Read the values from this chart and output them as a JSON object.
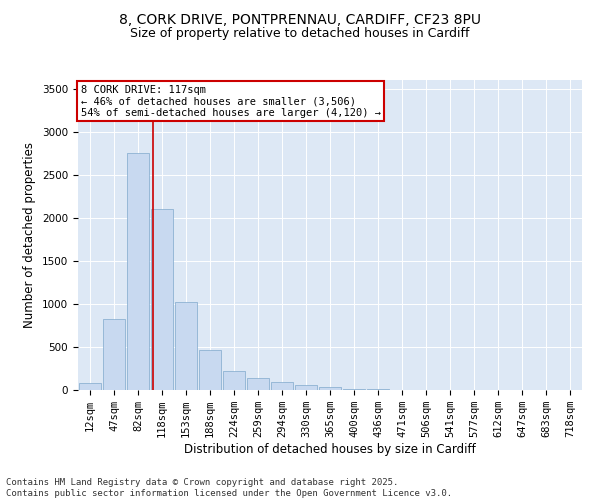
{
  "title_line1": "8, CORK DRIVE, PONTPRENNAU, CARDIFF, CF23 8PU",
  "title_line2": "Size of property relative to detached houses in Cardiff",
  "xlabel": "Distribution of detached houses by size in Cardiff",
  "ylabel": "Number of detached properties",
  "bar_labels": [
    "12sqm",
    "47sqm",
    "82sqm",
    "118sqm",
    "153sqm",
    "188sqm",
    "224sqm",
    "259sqm",
    "294sqm",
    "330sqm",
    "365sqm",
    "400sqm",
    "436sqm",
    "471sqm",
    "506sqm",
    "541sqm",
    "577sqm",
    "612sqm",
    "647sqm",
    "683sqm",
    "718sqm"
  ],
  "bar_values": [
    80,
    820,
    2750,
    2100,
    1020,
    465,
    220,
    140,
    90,
    55,
    30,
    15,
    8,
    4,
    2,
    1,
    1,
    0,
    0,
    0,
    0
  ],
  "bar_color": "#c8d9f0",
  "bar_edge_color": "#7fa8cc",
  "red_line_index": 2.62,
  "annotation_text": "8 CORK DRIVE: 117sqm\n← 46% of detached houses are smaller (3,506)\n54% of semi-detached houses are larger (4,120) →",
  "annotation_box_color": "#ffffff",
  "annotation_box_edge": "#cc0000",
  "red_line_color": "#cc0000",
  "ylim": [
    0,
    3600
  ],
  "yticks": [
    0,
    500,
    1000,
    1500,
    2000,
    2500,
    3000,
    3500
  ],
  "plot_bg_color": "#dde8f5",
  "fig_bg_color": "#ffffff",
  "footer_text": "Contains HM Land Registry data © Crown copyright and database right 2025.\nContains public sector information licensed under the Open Government Licence v3.0.",
  "title_fontsize": 10,
  "subtitle_fontsize": 9,
  "axis_label_fontsize": 8.5,
  "tick_fontsize": 7.5,
  "annotation_fontsize": 7.5,
  "footer_fontsize": 6.5
}
